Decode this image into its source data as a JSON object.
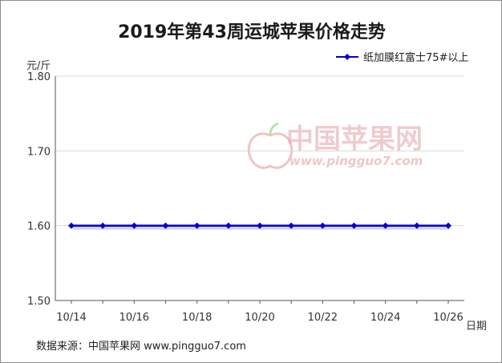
{
  "chart_data": {
    "type": "line",
    "title": "2019年第43周运城苹果价格走势",
    "ylabel": "元/斤",
    "xlabel": "日期",
    "ylim": [
      1.5,
      1.8
    ],
    "yticks": [
      "1.80",
      "1.70",
      "1.60",
      "1.50"
    ],
    "x_tick_labels": [
      "10/14",
      "10/16",
      "10/18",
      "10/20",
      "10/22",
      "10/24",
      "10/26"
    ],
    "x": [
      "10/14",
      "10/15",
      "10/16",
      "10/17",
      "10/18",
      "10/19",
      "10/20",
      "10/21",
      "10/22",
      "10/23",
      "10/24",
      "10/25",
      "10/26"
    ],
    "series": [
      {
        "name": "纸加膜红富士75#以上",
        "color": "#0000cc",
        "values": [
          1.6,
          1.6,
          1.6,
          1.6,
          1.6,
          1.6,
          1.6,
          1.6,
          1.6,
          1.6,
          1.6,
          1.6,
          1.6
        ]
      }
    ],
    "grid": true,
    "legend": "top-right"
  },
  "source_text": "数据来源：中国苹果网 www.pingguo7.com",
  "watermark": {
    "cn": "中国苹果网",
    "en": "www.pingguo7.com"
  }
}
